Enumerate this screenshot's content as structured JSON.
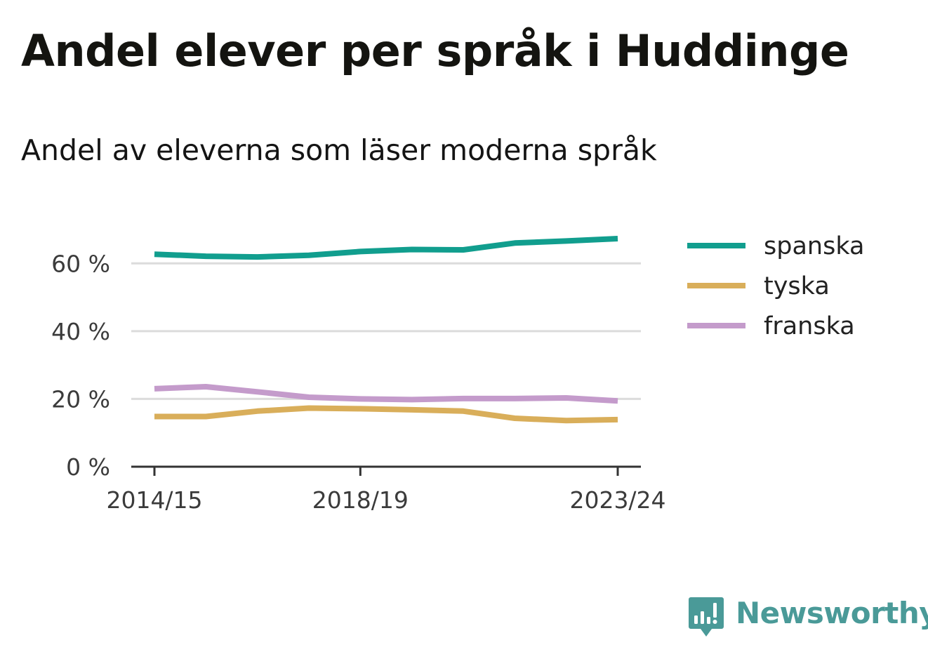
{
  "header": {
    "title": "Andel elever per språk i Huddinge",
    "subtitle": "Andel av eleverna som läser moderna språk"
  },
  "branding": {
    "logo_text": "Newsworthy",
    "logo_color": "#4a9a98"
  },
  "chart_data": {
    "type": "line",
    "x": [
      "2014/15",
      "2015/16",
      "2016/17",
      "2017/18",
      "2018/19",
      "2019/20",
      "2020/21",
      "2021/22",
      "2022/23",
      "2023/24"
    ],
    "x_tick_labels": [
      "2014/15",
      "2018/19",
      "2023/24"
    ],
    "y_ticks": [
      0,
      20,
      40,
      60
    ],
    "y_tick_labels": [
      "0 %",
      "20 %",
      "40 %",
      "60 %"
    ],
    "ylim": [
      0,
      70
    ],
    "grid": "horizontal",
    "legend_position": "right",
    "series": [
      {
        "name": "spanska",
        "color": "#119e8e",
        "values": [
          62.7,
          62.1,
          61.9,
          62.4,
          63.5,
          64.1,
          64.0,
          66.0,
          66.6,
          67.3
        ]
      },
      {
        "name": "tyska",
        "color": "#d9ae5a",
        "values": [
          14.8,
          14.8,
          16.4,
          17.3,
          17.1,
          16.8,
          16.4,
          14.3,
          13.6,
          13.9
        ]
      },
      {
        "name": "franska",
        "color": "#c49bcb",
        "values": [
          23.0,
          23.6,
          22.1,
          20.5,
          20.0,
          19.8,
          20.1,
          20.1,
          20.3,
          19.4
        ]
      }
    ]
  }
}
